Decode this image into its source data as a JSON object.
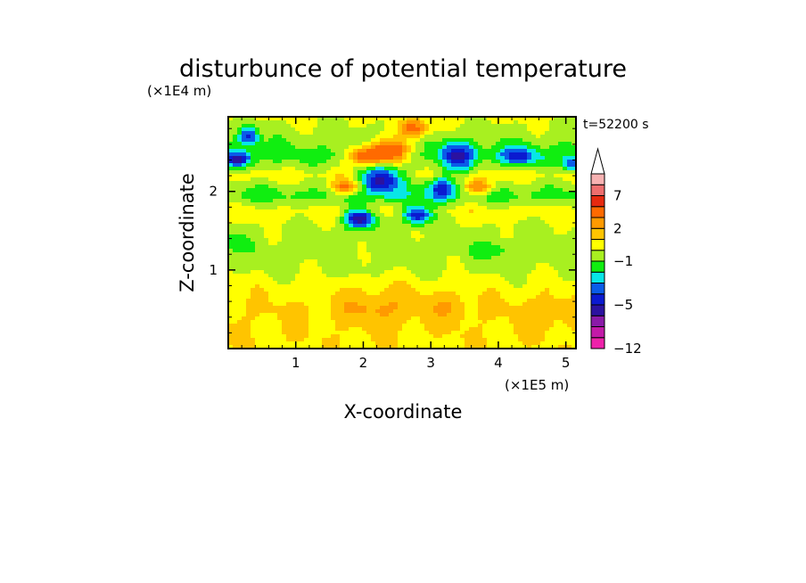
{
  "chart_data": {
    "type": "heatmap",
    "title": "disturbunce of potential temperature",
    "xlabel": "X-coordinate",
    "ylabel": "Z-coordinate",
    "x_unit": "(×1E5 m)",
    "y_unit": "(×1E4 m)",
    "time_label": "t=52200 s",
    "xlim": [
      0,
      5.15
    ],
    "ylim": [
      0,
      2.95
    ],
    "x_ticks": [
      "1",
      "2",
      "3",
      "4",
      "5"
    ],
    "y_ticks": [
      "1",
      "2"
    ],
    "colorbar": {
      "levels": [
        -12,
        -10,
        -8,
        -6,
        -5,
        -4,
        -3,
        -2,
        -1,
        0,
        1,
        2,
        3,
        5,
        7,
        9,
        11
      ],
      "labels": [
        "−12",
        "−5",
        "−1",
        "2",
        "7"
      ],
      "colors": [
        "#ee22aa",
        "#c21aa8",
        "#8a1aa8",
        "#2b12a0",
        "#0b1ad0",
        "#0a5ce8",
        "#08e6e6",
        "#10ee10",
        "#a8f020",
        "#ffff00",
        "#ffc400",
        "#ff9a00",
        "#ff6a00",
        "#e62a10",
        "#ee6e6e",
        "#f7b2b2",
        "#ffffff"
      ]
    },
    "field_bands": [
      {
        "z": 0.0,
        "value": 0.8
      },
      {
        "z": 0.5,
        "value": 1.1
      },
      {
        "z": 0.8,
        "value": 0.5
      },
      {
        "z": 1.0,
        "value": -0.2
      },
      {
        "z": 1.25,
        "value": -0.5
      },
      {
        "z": 1.5,
        "value": -0.3
      },
      {
        "z": 1.75,
        "value": 0.5
      },
      {
        "z": 1.95,
        "value": -1.5
      },
      {
        "z": 2.2,
        "value": 0.5
      },
      {
        "z": 2.45,
        "value": -1.5
      },
      {
        "z": 2.7,
        "value": -0.5
      },
      {
        "z": 2.95,
        "value": 0.2
      }
    ],
    "features": [
      {
        "x": 2.25,
        "z": 2.15,
        "value": -5.5,
        "rx": 0.3,
        "rz": 0.18
      },
      {
        "x": 1.95,
        "z": 1.65,
        "value": -5.5,
        "rx": 0.22,
        "rz": 0.12
      },
      {
        "x": 2.8,
        "z": 1.7,
        "value": -5.0,
        "rx": 0.22,
        "rz": 0.12
      },
      {
        "x": 3.15,
        "z": 2.05,
        "value": -4.8,
        "rx": 0.2,
        "rz": 0.15
      },
      {
        "x": 3.4,
        "z": 2.45,
        "value": -5.5,
        "rx": 0.25,
        "rz": 0.18
      },
      {
        "x": 4.3,
        "z": 2.45,
        "value": -4.5,
        "rx": 0.3,
        "rz": 0.12
      },
      {
        "x": 5.1,
        "z": 2.35,
        "value": -4.5,
        "rx": 0.15,
        "rz": 0.1
      },
      {
        "x": 0.15,
        "z": 2.4,
        "value": -5.5,
        "rx": 0.18,
        "rz": 0.1
      },
      {
        "x": 0.3,
        "z": 2.7,
        "value": -4.5,
        "rx": 0.15,
        "rz": 0.12
      },
      {
        "x": 2.4,
        "z": 2.5,
        "value": 4.0,
        "rx": 0.3,
        "rz": 0.15
      },
      {
        "x": 2.05,
        "z": 2.45,
        "value": 3.8,
        "rx": 0.25,
        "rz": 0.12
      },
      {
        "x": 2.75,
        "z": 2.8,
        "value": 4.0,
        "rx": 0.2,
        "rz": 0.12
      },
      {
        "x": 1.75,
        "z": 2.05,
        "value": 3.5,
        "rx": 0.22,
        "rz": 0.1
      },
      {
        "x": 3.7,
        "z": 2.05,
        "value": 3.0,
        "rx": 0.2,
        "rz": 0.1
      },
      {
        "x": 2.25,
        "z": 0.55,
        "value": 2.2,
        "rx": 0.55,
        "rz": 0.25
      },
      {
        "x": 3.3,
        "z": 0.55,
        "value": 2.0,
        "rx": 0.25,
        "rz": 0.2
      },
      {
        "x": 4.7,
        "z": 0.45,
        "value": 2.0,
        "rx": 0.3,
        "rz": 0.2
      },
      {
        "x": 4.0,
        "z": 1.25,
        "value": -1.5,
        "rx": 0.4,
        "rz": 0.1
      },
      {
        "x": 0.05,
        "z": 1.35,
        "value": -1.6,
        "rx": 0.25,
        "rz": 0.1
      }
    ]
  }
}
